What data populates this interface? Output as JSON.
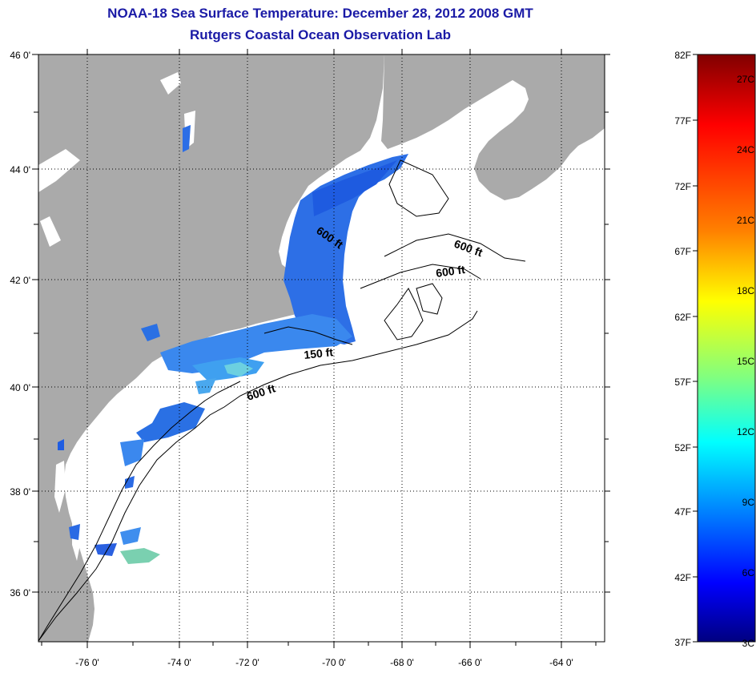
{
  "title": {
    "line1": "NOAA-18 Sea Surface Temperature:  December 28, 2012 2008 GMT",
    "line2": "Rutgers Coastal Ocean Observation Lab"
  },
  "map": {
    "lat_labels": [
      "46 0'",
      "44 0'",
      "42 0'",
      "40 0'",
      "38 0'",
      "36 0'"
    ],
    "lon_labels": [
      "-76 0'",
      "-74 0'",
      "-72 0'",
      "-70 0'",
      "-68 0'",
      "-66 0'",
      "-64 0'"
    ],
    "contour_labels": [
      "600 ft",
      "600 ft",
      "600 ft",
      "150 ft",
      "600 ft"
    ],
    "colors": {
      "land": "#aaaaaa",
      "ocean": "#ffffff",
      "grid": "#000000"
    }
  },
  "colorbar": {
    "fahrenheit_labels": [
      "82F",
      "77F",
      "72F",
      "67F",
      "62F",
      "57F",
      "52F",
      "47F",
      "42F",
      "37F"
    ],
    "celsius_labels": [
      "27C",
      "24C",
      "21C",
      "18C",
      "15C",
      "12C",
      "9C",
      "6C",
      "3C"
    ],
    "gradient_colors": [
      "#800000",
      "#ff0000",
      "#ff8000",
      "#ffff00",
      "#80ff80",
      "#00ffff",
      "#0080ff",
      "#0000ff",
      "#000080"
    ]
  }
}
